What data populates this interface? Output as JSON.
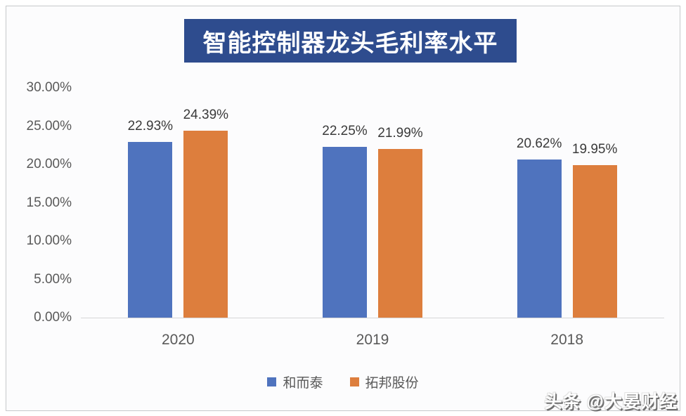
{
  "chart_data": {
    "type": "bar",
    "title": "智能控制器龙头毛利率水平",
    "categories": [
      "2020",
      "2019",
      "2018"
    ],
    "series": [
      {
        "name": "和而泰",
        "color": "#4F73BE",
        "values": [
          22.93,
          22.25,
          20.62
        ],
        "value_labels": [
          "22.93%",
          "22.25%",
          "20.62%"
        ]
      },
      {
        "name": "拓邦股份",
        "color": "#DD7E3D",
        "values": [
          24.39,
          21.99,
          19.95
        ],
        "value_labels": [
          "24.39%",
          "21.99%",
          "19.95%"
        ]
      }
    ],
    "y_axis": {
      "max": 30,
      "ticks": [
        {
          "value": 0,
          "label": "0.00%"
        },
        {
          "value": 5,
          "label": "5.00%"
        },
        {
          "value": 10,
          "label": "10.00%"
        },
        {
          "value": 15,
          "label": "15.00%"
        },
        {
          "value": 20,
          "label": "20.00%"
        },
        {
          "value": 25,
          "label": "25.00%"
        },
        {
          "value": 30,
          "label": "30.00%"
        }
      ]
    },
    "gridlines": false,
    "legend_position": "bottom",
    "colors": {
      "title_bg": "#2E4C8E",
      "title_text": "#ffffff",
      "axis_text": "#595959",
      "data_label_text": "#3a3a3a",
      "axis_line": "#d6d6d6",
      "panel_bg": "#fcfcfd",
      "panel_border": "#c6c8cb"
    }
  },
  "watermark": {
    "text": "头条 @大晏财经"
  }
}
